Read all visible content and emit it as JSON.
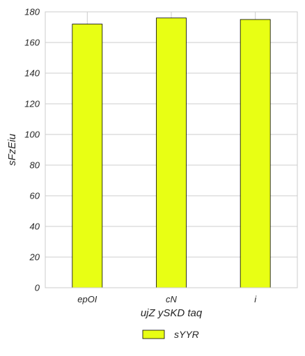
{
  "chart_data": {
    "type": "bar",
    "title": "",
    "xlabel": "ujZ ySKD  taq",
    "ylabel": "sFzEiu",
    "categories": [
      "epOI",
      "cN",
      "i"
    ],
    "series": [
      {
        "name": "sYYR",
        "values": [
          172,
          176,
          175
        ],
        "color": "#e8ff14"
      }
    ],
    "ylim": [
      0,
      180
    ],
    "yticks": [
      0,
      20,
      40,
      60,
      80,
      100,
      120,
      140,
      160,
      180
    ],
    "grid": true,
    "legend": "bottom-center",
    "colors": {
      "grid": "#cccccc",
      "axis": "#cccccc",
      "bar_edge": "#000000",
      "text": "#262626"
    }
  }
}
